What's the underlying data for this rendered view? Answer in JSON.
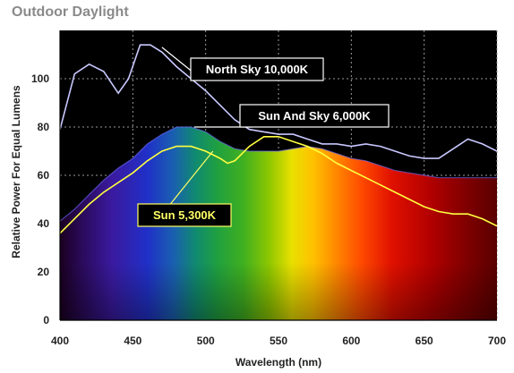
{
  "page": {
    "title": "Outdoor Daylight"
  },
  "chart_data": {
    "type": "line",
    "title": "Outdoor Daylight",
    "xlabel": "Wavelength (nm)",
    "ylabel": "Relative Power For Equal Lumens",
    "xlim": [
      400,
      700
    ],
    "ylim": [
      0,
      120
    ],
    "x_ticks": [
      400,
      450,
      500,
      550,
      600,
      650,
      700
    ],
    "y_ticks": [
      0,
      20,
      40,
      60,
      80,
      100
    ],
    "grid": true,
    "background": "visible-spectrum-gradient",
    "series": [
      {
        "name": "North Sky 10,000K",
        "color": "#c8c8ff",
        "points": [
          [
            400,
            79
          ],
          [
            410,
            102
          ],
          [
            420,
            106
          ],
          [
            430,
            103
          ],
          [
            440,
            94
          ],
          [
            447,
            100
          ],
          [
            455,
            114
          ],
          [
            462,
            114
          ],
          [
            470,
            111
          ],
          [
            480,
            105
          ],
          [
            490,
            100
          ],
          [
            500,
            95
          ],
          [
            510,
            89
          ],
          [
            520,
            83
          ],
          [
            530,
            79
          ],
          [
            540,
            78
          ],
          [
            550,
            77
          ],
          [
            560,
            77
          ],
          [
            570,
            75
          ],
          [
            580,
            73
          ],
          [
            590,
            73
          ],
          [
            600,
            72
          ],
          [
            610,
            73
          ],
          [
            620,
            72
          ],
          [
            630,
            70
          ],
          [
            640,
            68
          ],
          [
            650,
            67
          ],
          [
            660,
            67
          ],
          [
            670,
            71
          ],
          [
            680,
            75
          ],
          [
            690,
            73
          ],
          [
            700,
            70
          ]
        ]
      },
      {
        "name": "Sun And Sky 6,000K",
        "color": "#7070ff",
        "fill": true,
        "points": [
          [
            400,
            41
          ],
          [
            410,
            46
          ],
          [
            420,
            52
          ],
          [
            430,
            58
          ],
          [
            440,
            63
          ],
          [
            450,
            67
          ],
          [
            460,
            73
          ],
          [
            470,
            77
          ],
          [
            480,
            80
          ],
          [
            490,
            80
          ],
          [
            500,
            78
          ],
          [
            510,
            74
          ],
          [
            520,
            71
          ],
          [
            530,
            70
          ],
          [
            540,
            70
          ],
          [
            550,
            70
          ],
          [
            560,
            71
          ],
          [
            570,
            72
          ],
          [
            580,
            71
          ],
          [
            590,
            69
          ],
          [
            600,
            67
          ],
          [
            610,
            66
          ],
          [
            620,
            64
          ],
          [
            630,
            62
          ],
          [
            640,
            61
          ],
          [
            650,
            60
          ],
          [
            660,
            59
          ],
          [
            670,
            59
          ],
          [
            680,
            59
          ],
          [
            690,
            59
          ],
          [
            700,
            59
          ]
        ]
      },
      {
        "name": "Sun 5,300K",
        "color": "#ffff40",
        "points": [
          [
            400,
            36
          ],
          [
            410,
            42
          ],
          [
            420,
            48
          ],
          [
            430,
            53
          ],
          [
            440,
            57
          ],
          [
            450,
            61
          ],
          [
            460,
            66
          ],
          [
            470,
            70
          ],
          [
            480,
            72
          ],
          [
            490,
            72
          ],
          [
            500,
            70
          ],
          [
            510,
            67
          ],
          [
            515,
            65
          ],
          [
            520,
            66
          ],
          [
            530,
            72
          ],
          [
            540,
            76
          ],
          [
            550,
            76
          ],
          [
            560,
            74
          ],
          [
            570,
            72
          ],
          [
            580,
            69
          ],
          [
            590,
            65
          ],
          [
            600,
            62
          ],
          [
            610,
            59
          ],
          [
            620,
            56
          ],
          [
            630,
            53
          ],
          [
            640,
            50
          ],
          [
            650,
            47
          ],
          [
            660,
            45
          ],
          [
            670,
            44
          ],
          [
            680,
            44
          ],
          [
            690,
            42
          ],
          [
            700,
            39
          ]
        ]
      }
    ],
    "annotations": [
      {
        "text": "North Sky 10,000K",
        "series": "North Sky 10,000K"
      },
      {
        "text": "Sun And Sky 6,000K",
        "series": "Sun And Sky 6,000K"
      },
      {
        "text": "Sun 5,300K",
        "series": "Sun 5,300K"
      }
    ]
  }
}
